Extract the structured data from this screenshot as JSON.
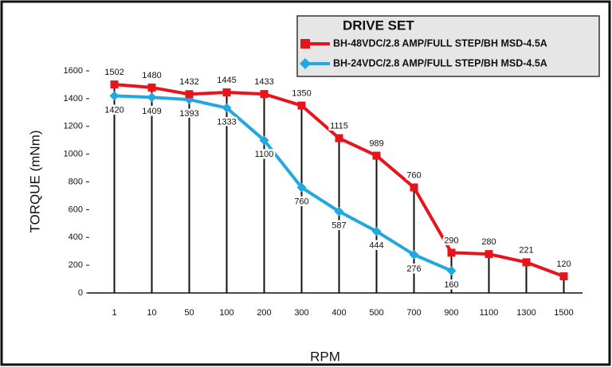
{
  "chart_data": {
    "type": "line",
    "legend_title": "DRIVE SET",
    "x_label": "RPM",
    "y_label": "TORQUE (mNm)",
    "categories": [
      "1",
      "10",
      "50",
      "100",
      "200",
      "300",
      "400",
      "500",
      "700",
      "900",
      "1100",
      "1300",
      "1500"
    ],
    "series": [
      {
        "name": "BH-48VDC/2.8 AMP/FULL STEP/BH MSD-4.5A",
        "color": "#e8141b",
        "marker": "square",
        "label_position": "above",
        "values": [
          1502,
          1480,
          1432,
          1445,
          1433,
          1350,
          1115,
          989,
          760,
          290,
          280,
          221,
          120
        ]
      },
      {
        "name": "BH-24VDC/2.8 AMP/FULL STEP/BH MSD-4.5A",
        "color": "#22a8e0",
        "marker": "diamond",
        "label_position": "below",
        "values": [
          1420,
          1409,
          1393,
          1333,
          1100,
          760,
          587,
          444,
          276,
          160,
          null,
          null,
          null
        ]
      }
    ],
    "ylim": [
      0,
      1600
    ],
    "yticks": [
      0,
      200,
      400,
      600,
      800,
      1000,
      1200,
      1400,
      1600
    ],
    "drop_lines": true,
    "legend": "top-right"
  }
}
